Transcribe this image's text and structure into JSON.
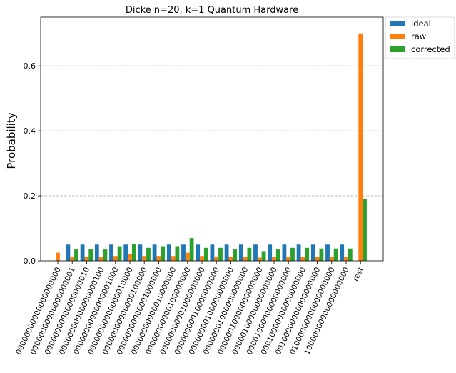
{
  "chart_data": {
    "type": "bar",
    "title": "Dicke n=20, k=1 Quantum Hardware",
    "xlabel": "",
    "ylabel": "Probability",
    "ylim": [
      0,
      0.75
    ],
    "yticks": [
      "0.0",
      "0.2",
      "0.4",
      "0.6"
    ],
    "grid": "horizontal dashed",
    "legend_position": "outside-top-right",
    "categories": [
      "00000000000000000000",
      "00000000000000000001",
      "00000000000000000010",
      "00000000000000000100",
      "00000000000000001000",
      "00000000000000010000",
      "00000000000000100000",
      "00000000000001000000",
      "00000000000010000000",
      "00000000000100000000",
      "00000000001000000000",
      "00000000010000000000",
      "00000000100000000000",
      "00000001000000000000",
      "00000010000000000000",
      "00000100000000000000",
      "00001000000000000000",
      "00010000000000000000",
      "00100000000000000000",
      "01000000000000000000",
      "10000000000000000000",
      "rest"
    ],
    "series": [
      {
        "name": "ideal",
        "color": "#1f77b4",
        "values": [
          0,
          0.05,
          0.05,
          0.05,
          0.05,
          0.05,
          0.05,
          0.05,
          0.05,
          0.05,
          0.05,
          0.05,
          0.05,
          0.05,
          0.05,
          0.05,
          0.05,
          0.05,
          0.05,
          0.05,
          0.05,
          0
        ]
      },
      {
        "name": "raw",
        "color": "#ff7f0e",
        "values": [
          0.025,
          0.012,
          0.012,
          0.012,
          0.015,
          0.02,
          0.015,
          0.015,
          0.015,
          0.025,
          0.015,
          0.013,
          0.013,
          0.013,
          0.01,
          0.012,
          0.012,
          0.012,
          0.012,
          0.012,
          0.012,
          0.7
        ]
      },
      {
        "name": "corrected",
        "color": "#2ca02c",
        "values": [
          0,
          0.035,
          0.035,
          0.035,
          0.045,
          0.052,
          0.04,
          0.045,
          0.045,
          0.07,
          0.04,
          0.04,
          0.035,
          0.04,
          0.03,
          0.035,
          0.04,
          0.04,
          0.038,
          0.038,
          0.038,
          0.19
        ]
      }
    ]
  }
}
